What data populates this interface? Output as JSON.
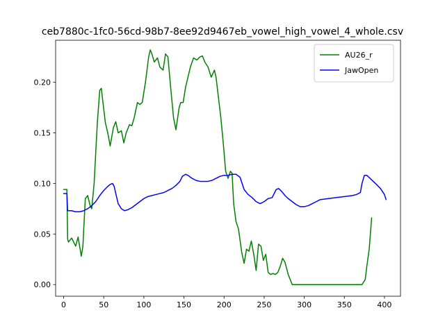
{
  "chart_data": {
    "type": "line",
    "title": "ceb7880c-1fc0-56cd-98b7-8ee92d9467eb_vowel_high_vowel_4_whole.csv",
    "xlabel": "",
    "ylabel": "",
    "xlim": [
      -10,
      420
    ],
    "ylim": [
      -0.0115,
      0.2415
    ],
    "xticks": [
      0,
      50,
      100,
      150,
      200,
      250,
      300,
      350,
      400
    ],
    "yticks": [
      0.0,
      0.05,
      0.1,
      0.15,
      0.2
    ],
    "ytick_labels": [
      "0.00",
      "0.05",
      "0.10",
      "0.15",
      "0.20"
    ],
    "grid": false,
    "legend_position": "top-right",
    "series": [
      {
        "name": "AU26_r",
        "color": "#008000",
        "x": [
          0,
          4,
          5,
          6,
          10,
          15,
          18,
          22,
          24,
          27,
          30,
          33,
          35,
          38,
          42,
          45,
          47,
          49,
          52,
          55,
          58,
          62,
          65,
          68,
          72,
          75,
          78,
          82,
          85,
          88,
          92,
          95,
          98,
          102,
          106,
          108,
          110,
          113,
          117,
          120,
          124,
          127,
          130,
          134,
          137,
          140,
          144,
          146,
          149,
          152,
          155,
          158,
          162,
          166,
          170,
          173,
          176,
          180,
          184,
          188,
          190,
          193,
          196,
          199,
          202,
          205,
          208,
          210,
          212,
          215,
          218,
          222,
          225,
          228,
          231,
          234,
          237,
          240,
          243,
          246,
          249,
          252,
          255,
          258,
          261,
          264,
          267,
          270,
          273,
          276,
          280,
          285,
          290,
          300,
          320,
          340,
          360,
          372,
          376,
          378,
          381,
          384
        ],
        "y": [
          0.094,
          0.094,
          0.045,
          0.042,
          0.046,
          0.038,
          0.047,
          0.028,
          0.038,
          0.085,
          0.088,
          0.078,
          0.075,
          0.1,
          0.16,
          0.192,
          0.194,
          0.18,
          0.16,
          0.15,
          0.137,
          0.155,
          0.161,
          0.15,
          0.152,
          0.14,
          0.15,
          0.158,
          0.157,
          0.165,
          0.18,
          0.178,
          0.18,
          0.2,
          0.225,
          0.232,
          0.228,
          0.22,
          0.224,
          0.215,
          0.212,
          0.228,
          0.225,
          0.19,
          0.165,
          0.153,
          0.175,
          0.18,
          0.18,
          0.195,
          0.205,
          0.215,
          0.224,
          0.222,
          0.225,
          0.226,
          0.22,
          0.215,
          0.205,
          0.212,
          0.205,
          0.185,
          0.165,
          0.14,
          0.112,
          0.105,
          0.112,
          0.11,
          0.08,
          0.062,
          0.055,
          0.032,
          0.021,
          0.035,
          0.033,
          0.043,
          0.03,
          0.014,
          0.04,
          0.038,
          0.024,
          0.03,
          0.012,
          0.01,
          0.011,
          0.01,
          0.012,
          0.018,
          0.026,
          0.022,
          0.01,
          0.0,
          0.0,
          0.0,
          0.0,
          0.0,
          0.0,
          0.0,
          0.005,
          0.018,
          0.035,
          0.066
        ]
      },
      {
        "name": "JawOpen",
        "color": "#0000ff",
        "x": [
          0,
          4,
          5,
          10,
          15,
          20,
          25,
          30,
          35,
          40,
          45,
          50,
          55,
          58,
          61,
          63,
          65,
          68,
          72,
          76,
          80,
          85,
          90,
          95,
          100,
          105,
          110,
          115,
          120,
          125,
          130,
          135,
          140,
          145,
          148,
          152,
          155,
          160,
          165,
          170,
          175,
          180,
          185,
          190,
          195,
          200,
          205,
          210,
          215,
          220,
          225,
          230,
          235,
          240,
          245,
          250,
          255,
          260,
          265,
          268,
          272,
          276,
          280,
          285,
          290,
          295,
          300,
          305,
          310,
          315,
          320,
          330,
          340,
          350,
          360,
          365,
          370,
          372,
          375,
          378,
          382,
          386,
          390,
          395,
          400,
          402
        ],
        "y": [
          0.09,
          0.09,
          0.073,
          0.073,
          0.072,
          0.072,
          0.073,
          0.075,
          0.078,
          0.082,
          0.088,
          0.093,
          0.097,
          0.099,
          0.1,
          0.097,
          0.09,
          0.08,
          0.075,
          0.073,
          0.074,
          0.076,
          0.079,
          0.082,
          0.085,
          0.087,
          0.088,
          0.089,
          0.09,
          0.091,
          0.093,
          0.095,
          0.098,
          0.102,
          0.107,
          0.109,
          0.108,
          0.105,
          0.103,
          0.102,
          0.102,
          0.102,
          0.103,
          0.105,
          0.107,
          0.108,
          0.108,
          0.109,
          0.109,
          0.106,
          0.094,
          0.089,
          0.086,
          0.082,
          0.08,
          0.082,
          0.085,
          0.086,
          0.094,
          0.095,
          0.092,
          0.088,
          0.085,
          0.082,
          0.079,
          0.077,
          0.077,
          0.078,
          0.08,
          0.082,
          0.084,
          0.085,
          0.086,
          0.087,
          0.088,
          0.089,
          0.091,
          0.1,
          0.108,
          0.108,
          0.105,
          0.102,
          0.099,
          0.095,
          0.089,
          0.084
        ]
      }
    ]
  }
}
